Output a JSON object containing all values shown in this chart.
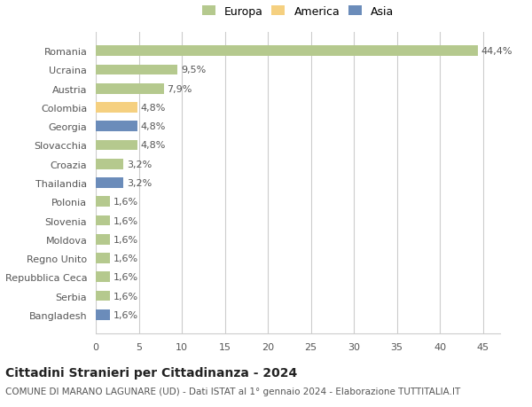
{
  "categories": [
    "Bangladesh",
    "Serbia",
    "Repubblica Ceca",
    "Regno Unito",
    "Moldova",
    "Slovenia",
    "Polonia",
    "Thailandia",
    "Croazia",
    "Slovacchia",
    "Georgia",
    "Colombia",
    "Austria",
    "Ucraina",
    "Romania"
  ],
  "values": [
    1.6,
    1.6,
    1.6,
    1.6,
    1.6,
    1.6,
    1.6,
    3.2,
    3.2,
    4.8,
    4.8,
    4.8,
    7.9,
    9.5,
    44.4
  ],
  "labels": [
    "1,6%",
    "1,6%",
    "1,6%",
    "1,6%",
    "1,6%",
    "1,6%",
    "1,6%",
    "3,2%",
    "3,2%",
    "4,8%",
    "4,8%",
    "4,8%",
    "7,9%",
    "9,5%",
    "44,4%"
  ],
  "colors": [
    "#6b8cba",
    "#b5c98e",
    "#b5c98e",
    "#b5c98e",
    "#b5c98e",
    "#b5c98e",
    "#b5c98e",
    "#6b8cba",
    "#b5c98e",
    "#b5c98e",
    "#6b8cba",
    "#f5d080",
    "#b5c98e",
    "#b5c98e",
    "#b5c98e"
  ],
  "legend_labels": [
    "Europa",
    "America",
    "Asia"
  ],
  "legend_colors": [
    "#b5c98e",
    "#f5d080",
    "#6b8cba"
  ],
  "title": "Cittadini Stranieri per Cittadinanza - 2024",
  "subtitle": "COMUNE DI MARANO LAGUNARE (UD) - Dati ISTAT al 1° gennaio 2024 - Elaborazione TUTTITALIA.IT",
  "xlim": [
    0,
    47
  ],
  "xticks": [
    0,
    5,
    10,
    15,
    20,
    25,
    30,
    35,
    40,
    45
  ],
  "bg_color": "#ffffff",
  "grid_color": "#cccccc",
  "bar_height": 0.55,
  "label_fontsize": 8,
  "title_fontsize": 10,
  "subtitle_fontsize": 7.5,
  "tick_fontsize": 8,
  "ylabel_fontsize": 8
}
